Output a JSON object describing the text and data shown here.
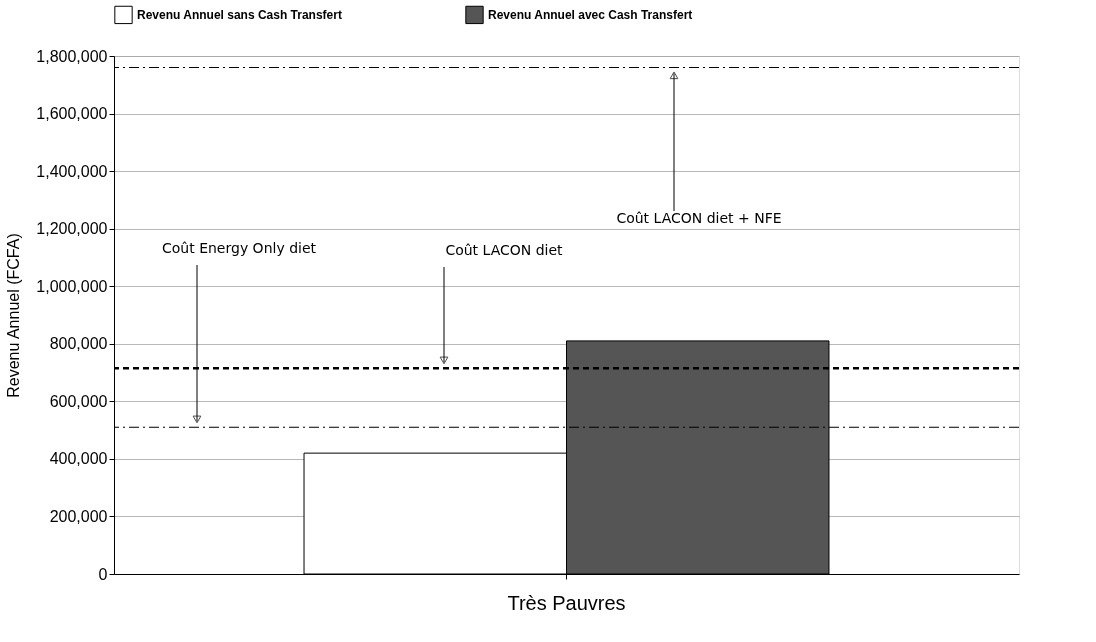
{
  "chart_data": {
    "type": "bar",
    "ylabel": "Revenu Annuel (FCFA)",
    "categories": [
      "Très Pauvres"
    ],
    "series": [
      {
        "name": "Revenu Annuel sans Cash Transfert",
        "color": "#ffffff",
        "values": [
          420000
        ]
      },
      {
        "name": "Revenu Annuel avec Cash Transfert",
        "color": "#555555",
        "values": [
          810000
        ]
      }
    ],
    "ylim": [
      0,
      1800000
    ],
    "yticks": [
      0,
      {
        "value": 200000,
        "label": "200,000"
      },
      {
        "value": 400000,
        "label": "400,000"
      },
      {
        "value": 600000,
        "label": "600,000"
      },
      {
        "value": 800000,
        "label": "800,000"
      },
      {
        "value": 1000000,
        "label": "1,000,000"
      },
      {
        "value": 1200000,
        "label": "1,200,000"
      },
      {
        "value": 1400000,
        "label": "1,400,000"
      },
      {
        "value": 1600000,
        "label": "1,600,000"
      },
      {
        "value": 1800000,
        "label": "1,800,000"
      }
    ],
    "grid": "y",
    "legend": "top",
    "ref_lines": [
      {
        "axis": "y",
        "value": 510000,
        "label": "Coût Energy Only diet",
        "line_style": "dashdot",
        "color": "#000000"
      },
      {
        "axis": "y",
        "value": 715000,
        "label": "Coût LACON diet",
        "line_style": "dashed",
        "color": "#000000"
      },
      {
        "axis": "y",
        "value": 1760000,
        "label": "Coût LACON diet + NFE",
        "line_style": "dashdot",
        "color": "#000000"
      }
    ]
  }
}
